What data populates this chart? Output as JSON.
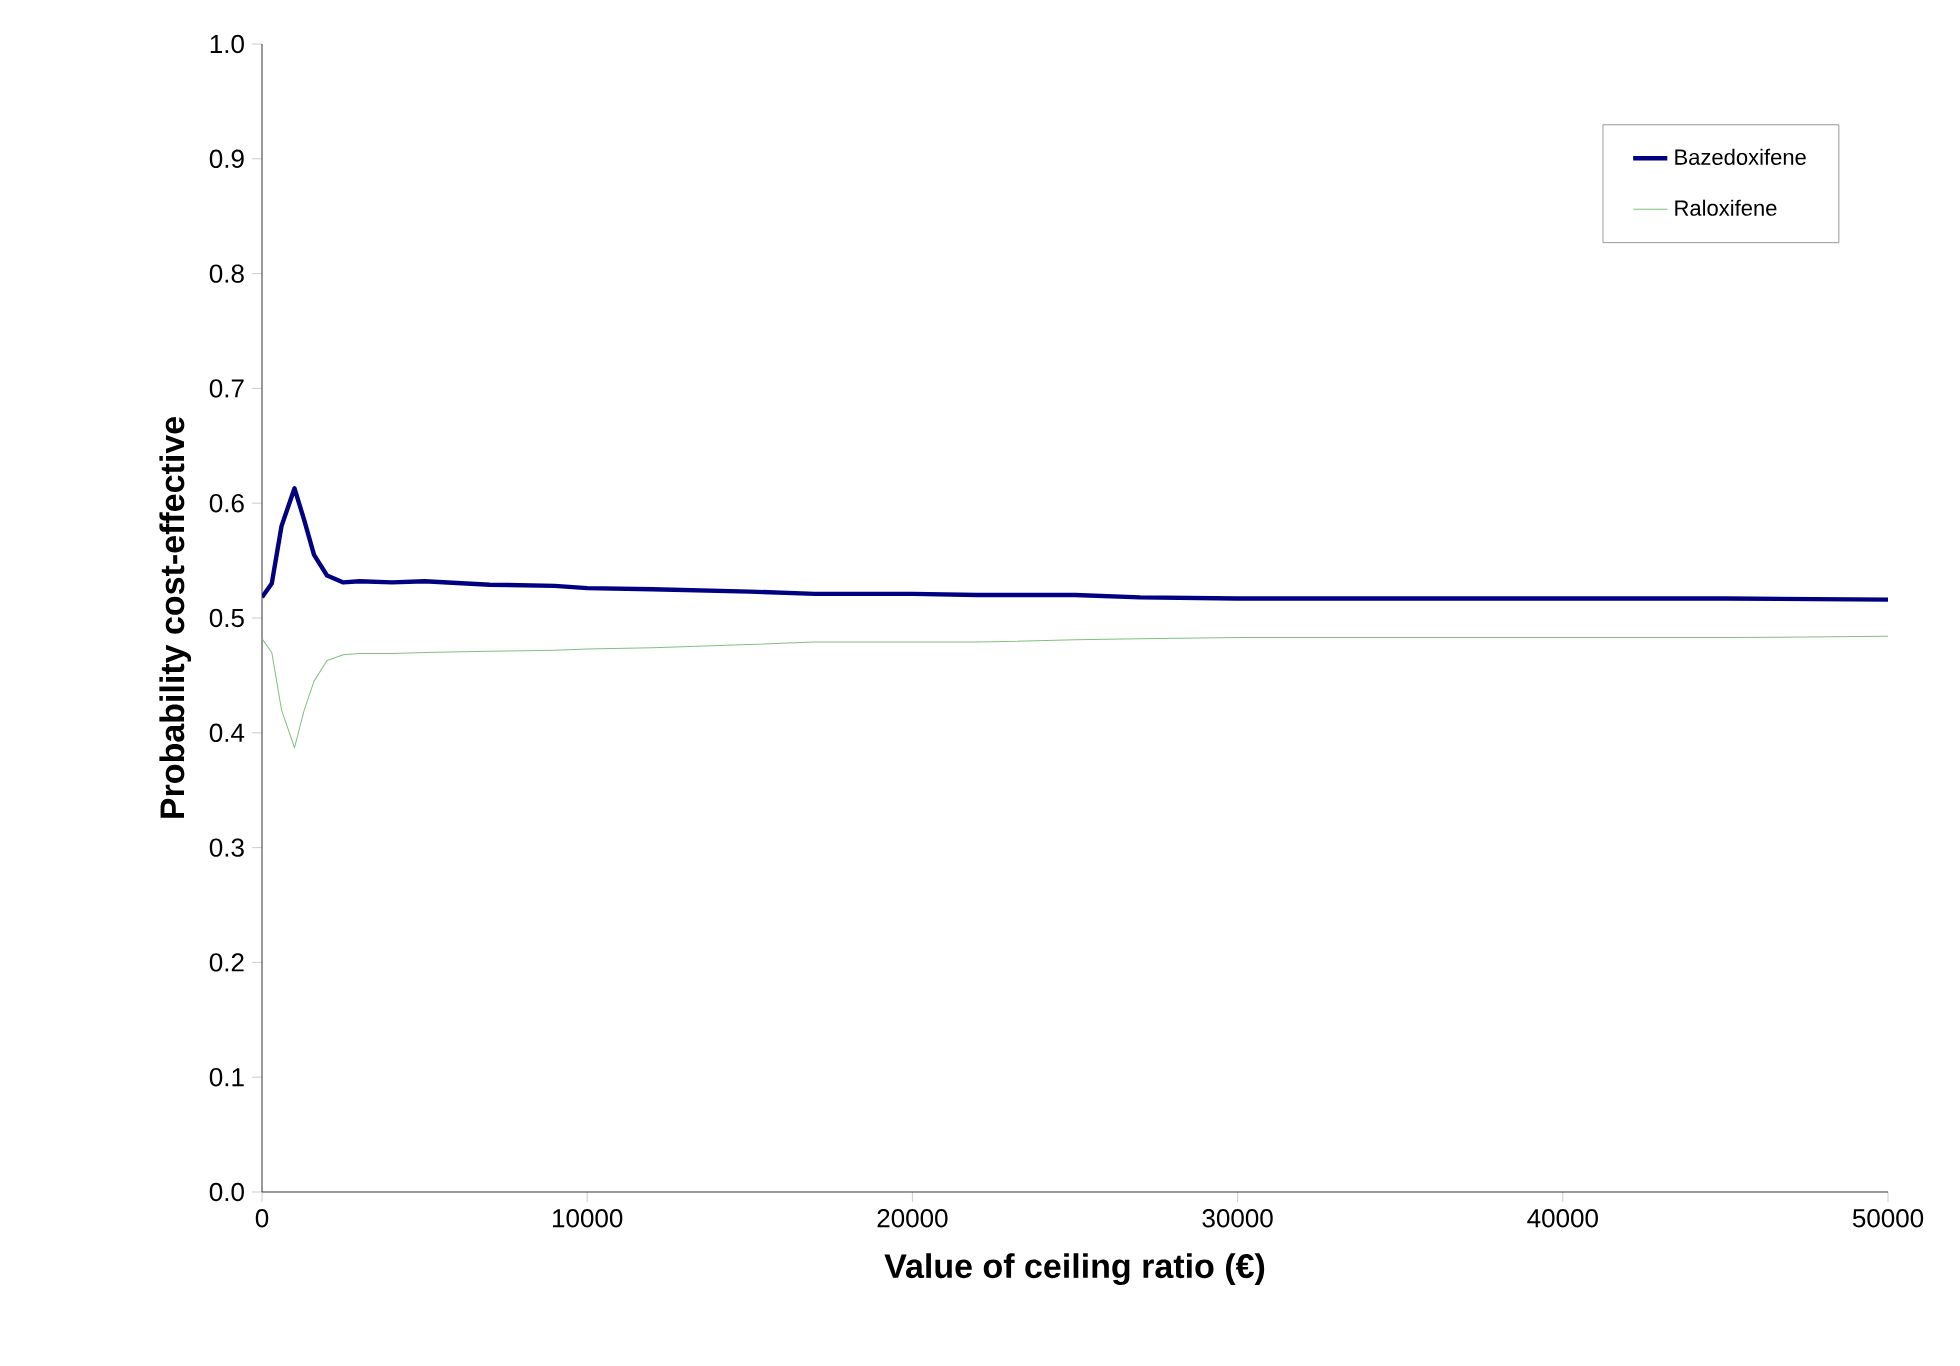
{
  "chart_data": {
    "type": "line",
    "xlabel": "Value of ceiling ratio (€)",
    "ylabel": "Probability cost-effective",
    "xlim": [
      0,
      50000
    ],
    "xticks": [
      0,
      10000,
      20000,
      30000,
      40000,
      50000
    ],
    "ylim": [
      0,
      1.0
    ],
    "yticks": [
      {
        "value": 0,
        "label": "0.0"
      },
      {
        "value": 0.1,
        "label": "0.1"
      },
      {
        "value": 0.2,
        "label": "0.2"
      },
      {
        "value": 0.3,
        "label": "0.3"
      },
      {
        "value": 0.4,
        "label": "0.4"
      },
      {
        "value": 0.5,
        "label": "0.5"
      },
      {
        "value": 0.6,
        "label": "0.6"
      },
      {
        "value": 0.7,
        "label": "0.7"
      },
      {
        "value": 0.8,
        "label": "0.8"
      },
      {
        "value": 0.9,
        "label": "0.9"
      },
      {
        "value": 1.0,
        "label": "1.0"
      }
    ],
    "x": [
      0,
      300,
      600,
      1000,
      1300,
      1600,
      2000,
      2500,
      3000,
      4000,
      5000,
      7000,
      9000,
      10000,
      12000,
      15000,
      17000,
      20000,
      22000,
      25000,
      27000,
      30000,
      35000,
      40000,
      45000,
      50000
    ],
    "series": [
      {
        "name": "Bazedoxifene",
        "color": "#000080",
        "values": [
          0.518,
          0.53,
          0.58,
          0.613,
          0.585,
          0.555,
          0.537,
          0.531,
          0.532,
          0.531,
          0.532,
          0.529,
          0.528,
          0.526,
          0.525,
          0.523,
          0.521,
          0.521,
          0.52,
          0.52,
          0.518,
          0.517,
          0.517,
          0.517,
          0.517,
          0.516
        ]
      },
      {
        "name": "Raloxifene",
        "color": "#80c080",
        "values": [
          0.482,
          0.47,
          0.42,
          0.387,
          0.42,
          0.445,
          0.463,
          0.468,
          0.469,
          0.469,
          0.47,
          0.471,
          0.472,
          0.473,
          0.474,
          0.477,
          0.479,
          0.479,
          0.479,
          0.481,
          0.482,
          0.483,
          0.483,
          0.483,
          0.483,
          0.484
        ]
      }
    ],
    "legend": "top right",
    "grid": false,
    "marker": "none",
    "line_style": "solid"
  }
}
